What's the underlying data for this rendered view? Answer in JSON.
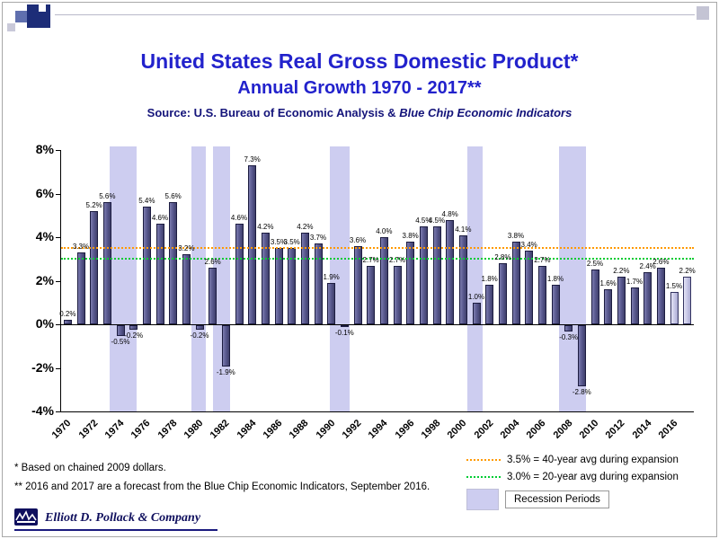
{
  "slide": {
    "title": "United States Real Gross Domestic Product*",
    "subtitle": "Annual Growth 1970 - 2017**",
    "source_prefix": "Source: U.S. Bureau of Economic Analysis & ",
    "source_italic": "Blue Chip Economic Indicators"
  },
  "chart_data": {
    "type": "bar",
    "title": "United States Real Gross Domestic Product Annual Growth 1970 - 2017",
    "xlabel": "",
    "ylabel": "",
    "start_year": 1970,
    "end_year": 2017,
    "values": [
      0.2,
      3.3,
      5.2,
      5.6,
      -0.5,
      -0.2,
      5.4,
      4.6,
      5.6,
      3.2,
      -0.2,
      2.6,
      -1.9,
      4.6,
      7.3,
      4.2,
      3.5,
      3.5,
      4.2,
      3.7,
      1.9,
      -0.1,
      3.6,
      2.7,
      4.0,
      2.7,
      3.8,
      4.5,
      4.5,
      4.8,
      4.1,
      1.0,
      1.8,
      2.8,
      3.8,
      3.4,
      2.7,
      1.8,
      -0.3,
      -2.8,
      2.5,
      1.6,
      2.2,
      1.7,
      2.4,
      2.6,
      1.5,
      2.2
    ],
    "ylim": [
      -4,
      8
    ],
    "yticks": [
      8,
      6,
      4,
      2,
      0,
      -2,
      -4
    ],
    "ytick_suffix": "%",
    "grid": false,
    "legend_position": "bottom-right",
    "bar_color": "#5b5b91",
    "forecast_years": [
      2016,
      2017
    ],
    "forecast_color": "#c6c6e6",
    "avg_lines": [
      {
        "value": 3.5,
        "color": "#ff9900",
        "label": "3.5% = 40-year avg during expansion"
      },
      {
        "value": 3.0,
        "color": "#00cc33",
        "label": "3.0% = 20-year avg during expansion"
      }
    ],
    "recessions": [
      {
        "from": 1973.7,
        "to": 1975.7
      },
      {
        "from": 1979.9,
        "to": 1981.0
      },
      {
        "from": 1981.5,
        "to": 1982.8
      },
      {
        "from": 1990.4,
        "to": 1991.9
      },
      {
        "from": 2000.8,
        "to": 2002.0
      },
      {
        "from": 2007.8,
        "to": 2009.8
      }
    ],
    "recession_color": "#cdcdf0",
    "recession_label": "Recession Periods"
  },
  "footnotes": [
    "* Based on chained 2009 dollars.",
    "** 2016 and 2017 are a forecast from the Blue Chip Economic Indicators,  September 2016."
  ],
  "logo": {
    "company": "Elliott D. Pollack & Company"
  }
}
